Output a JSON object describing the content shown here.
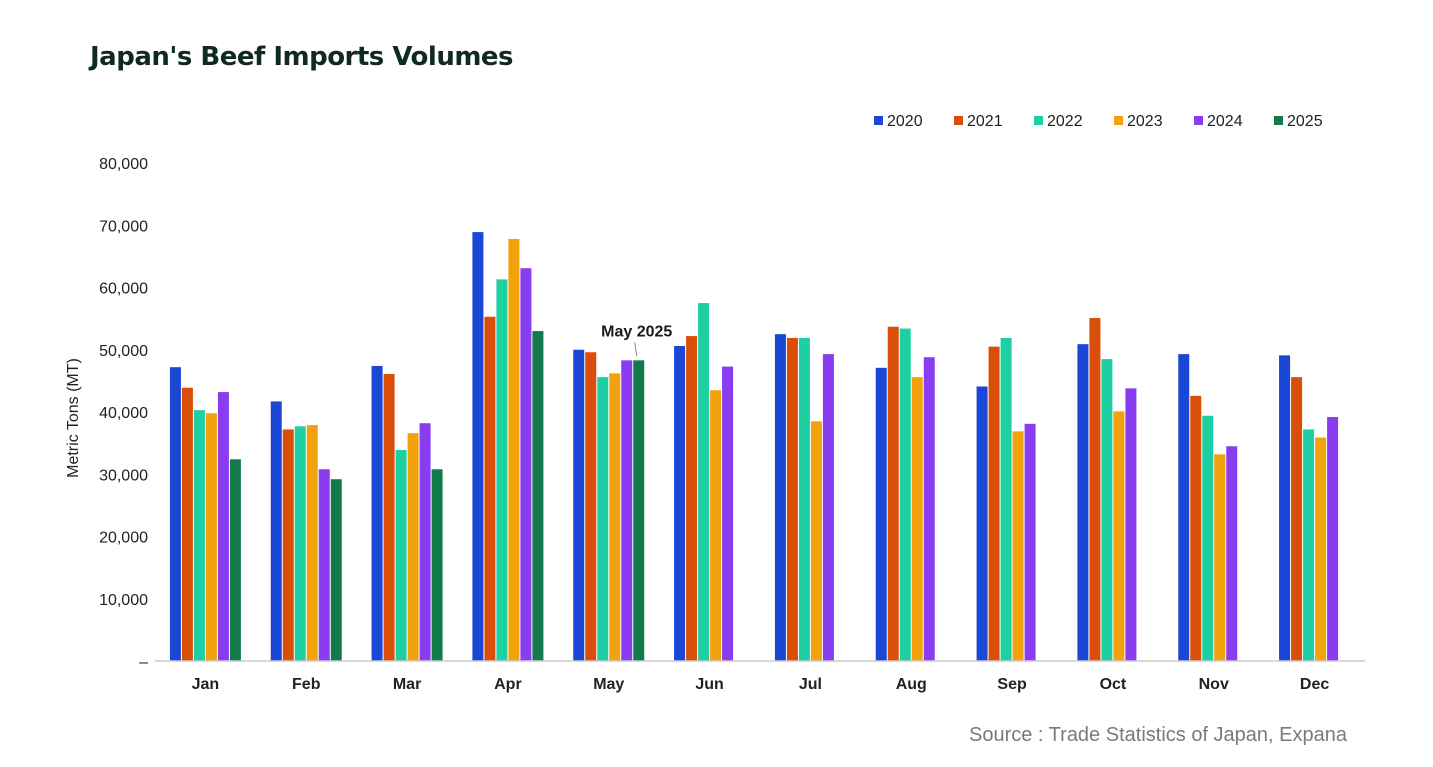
{
  "chart_data": {
    "type": "bar",
    "title": "Japan's Beef Imports Volumes",
    "ylabel": "Metric Tons (MT)",
    "xlabel": "",
    "ylim": [
      0,
      80000
    ],
    "yticks": [
      0,
      10000,
      20000,
      30000,
      40000,
      50000,
      60000,
      70000,
      80000
    ],
    "ytick_labels": [
      "–",
      "10,000",
      "20,000",
      "30,000",
      "40,000",
      "50,000",
      "60,000",
      "70,000",
      "80,000"
    ],
    "grid": false,
    "legend_position": "top-right",
    "categories": [
      "Jan",
      "Feb",
      "Mar",
      "Apr",
      "May",
      "Jun",
      "Jul",
      "Aug",
      "Sep",
      "Oct",
      "Nov",
      "Dec"
    ],
    "series": [
      {
        "name": "2020",
        "color": "#1a47d6",
        "values": [
          47200,
          41700,
          47400,
          68900,
          50000,
          50600,
          52500,
          47100,
          44100,
          50900,
          49300,
          49100
        ]
      },
      {
        "name": "2021",
        "color": "#d94f0a",
        "values": [
          43900,
          37200,
          46100,
          55300,
          49600,
          52200,
          51900,
          53700,
          50500,
          55100,
          42600,
          45600
        ]
      },
      {
        "name": "2022",
        "color": "#1ecfa4",
        "values": [
          40300,
          37700,
          33900,
          61300,
          45600,
          57500,
          51900,
          53400,
          51900,
          48500,
          39400,
          37200
        ]
      },
      {
        "name": "2023",
        "color": "#f2a20c",
        "values": [
          39800,
          37900,
          36600,
          67800,
          46200,
          43500,
          38500,
          45600,
          36900,
          40100,
          33200,
          35900
        ]
      },
      {
        "name": "2024",
        "color": "#8a3cf0",
        "values": [
          43200,
          30800,
          38200,
          63100,
          48300,
          47300,
          49300,
          48800,
          38100,
          43800,
          34500,
          39200
        ]
      },
      {
        "name": "2025",
        "color": "#137a4c",
        "values": [
          32400,
          29200,
          30800,
          53000,
          48300,
          null,
          null,
          null,
          null,
          null,
          null,
          null
        ]
      }
    ],
    "annotations": [
      {
        "text": "May 2025",
        "category": "May",
        "series": "2025"
      }
    ],
    "source": "Source : Trade Statistics of Japan, Expana"
  }
}
